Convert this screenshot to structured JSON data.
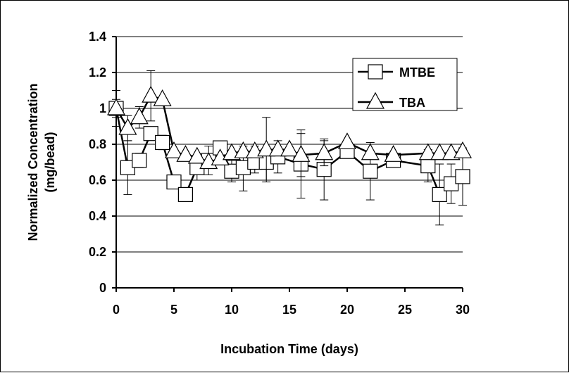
{
  "chart_data": {
    "type": "scatter",
    "title": "",
    "xlabel": "Incubation Time (days)",
    "ylabel_line1": "Normalized Concentration",
    "ylabel_line2": "(mg/bead)",
    "xlim": [
      0,
      30
    ],
    "ylim": [
      0,
      1.4
    ],
    "x_ticks": [
      "0",
      "5",
      "10",
      "15",
      "20",
      "25",
      "30"
    ],
    "y_ticks": [
      "0",
      "0.2",
      "0.4",
      "0.6",
      "0.8",
      "1",
      "1.2",
      "1.4"
    ],
    "grid": "horizontal",
    "legend_position": "top-right",
    "series": [
      {
        "name": "MTBE",
        "marker": "square",
        "x": [
          0,
          1,
          2,
          3,
          4,
          5,
          6,
          7,
          8,
          9,
          10,
          11,
          12,
          13,
          14,
          16,
          18,
          20,
          22,
          24,
          27,
          28,
          29,
          30
        ],
        "y": [
          1.0,
          0.67,
          0.71,
          0.86,
          0.81,
          0.59,
          0.52,
          0.67,
          0.71,
          0.78,
          0.65,
          0.67,
          0.7,
          0.7,
          0.73,
          0.69,
          0.66,
          0.76,
          0.65,
          0.71,
          0.68,
          0.52,
          0.58,
          0.62
        ],
        "err": [
          0.05,
          0.15,
          0.04,
          0.0,
          0.04,
          0.0,
          0.0,
          0.07,
          0.08,
          0.0,
          0.06,
          0.13,
          0.06,
          0.1,
          0.09,
          0.19,
          0.17,
          0.0,
          0.16,
          0.0,
          0.09,
          0.17,
          0.11,
          0.16
        ]
      },
      {
        "name": "TBA",
        "marker": "triangle",
        "x": [
          0,
          1,
          2,
          3,
          4,
          5,
          6,
          7,
          8,
          9,
          10,
          11,
          12,
          13,
          14,
          15,
          16,
          18,
          20,
          22,
          24,
          27,
          28,
          29,
          30
        ],
        "y": [
          1.0,
          0.89,
          0.95,
          1.07,
          1.05,
          0.76,
          0.74,
          0.73,
          0.7,
          0.72,
          0.75,
          0.76,
          0.76,
          0.77,
          0.77,
          0.77,
          0.74,
          0.75,
          0.81,
          0.75,
          0.74,
          0.75,
          0.75,
          0.75,
          0.76
        ],
        "err": [
          0.1,
          0.07,
          0.06,
          0.14,
          0.0,
          0.0,
          0.0,
          0.0,
          0.0,
          0.0,
          0.0,
          0.03,
          0.03,
          0.18,
          0.0,
          0.0,
          0.12,
          0.07,
          0.0,
          0.0,
          0.0,
          0.0,
          0.0,
          0.0,
          0.0
        ]
      }
    ]
  },
  "colors": {
    "line": "#000000",
    "marker_fill": "#ffffff",
    "grid": "#000000",
    "background": "#ffffff"
  }
}
